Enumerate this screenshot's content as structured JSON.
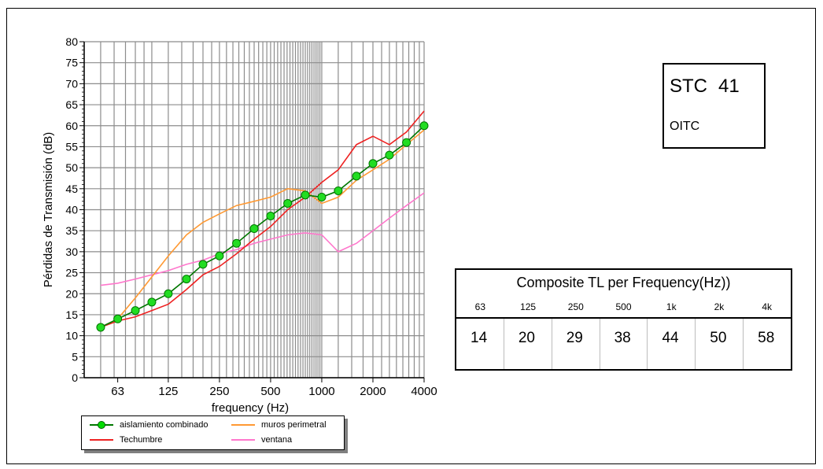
{
  "chart_data": {
    "type": "line",
    "xlabel": "frequency (Hz)",
    "ylabel": "Pérdidas de Transmisión (dB)",
    "ylim": [
      0,
      80
    ],
    "y_ticks": [
      "0",
      "5",
      "10",
      "15",
      "20",
      "25",
      "30",
      "35",
      "40",
      "45",
      "50",
      "55",
      "60",
      "65",
      "70",
      "75",
      "80"
    ],
    "x_tick_labels": [
      "63",
      "125",
      "250",
      "500",
      "1000",
      "2000",
      "4000"
    ],
    "x_scale": "log (third-octave bands)",
    "grid": "on",
    "legend_position": "bottom",
    "x": [
      50,
      63,
      80,
      100,
      125,
      160,
      200,
      250,
      315,
      400,
      500,
      630,
      800,
      1000,
      1250,
      1600,
      2000,
      2500,
      3150,
      4000
    ],
    "series": [
      {
        "name": "aislamiento combinado",
        "color": "#00cc00",
        "marker": "circle",
        "values": [
          12,
          14,
          16,
          18,
          20,
          23.5,
          27,
          29,
          32,
          35.5,
          38.5,
          41.5,
          43.5,
          43,
          44.5,
          48,
          51,
          53,
          56,
          60
        ]
      },
      {
        "name": "muros perimetral",
        "color": "#ff9933",
        "values": [
          12,
          14,
          19,
          24,
          29,
          34,
          37,
          39,
          41,
          42,
          43,
          45,
          44.5,
          41.5,
          43,
          47,
          49.5,
          52,
          55.5,
          59
        ]
      },
      {
        "name": "Techumbre",
        "color": "#ee2222",
        "values": [
          12,
          13.5,
          14.5,
          16,
          17.5,
          21,
          24.5,
          26.5,
          29.5,
          33,
          36,
          40,
          43,
          46.5,
          49.5,
          55.5,
          57.5,
          55.5,
          58.5,
          63.5
        ]
      },
      {
        "name": "ventana",
        "color": "#ff77cc",
        "values": [
          22,
          22.5,
          23.5,
          24.5,
          25.5,
          27,
          28,
          29.5,
          30.5,
          32,
          33,
          34,
          34.5,
          34,
          30,
          32,
          35,
          38,
          41,
          44
        ]
      }
    ]
  },
  "stc": {
    "label": "STC",
    "value": "41",
    "oitc_label": "OITC"
  },
  "tl_table": {
    "title": "Composite TL per Frequency(Hz))",
    "headers": [
      "63",
      "125",
      "250",
      "500",
      "1k",
      "2k",
      "4k"
    ],
    "values": [
      "14",
      "20",
      "29",
      "38",
      "44",
      "50",
      "58"
    ]
  }
}
